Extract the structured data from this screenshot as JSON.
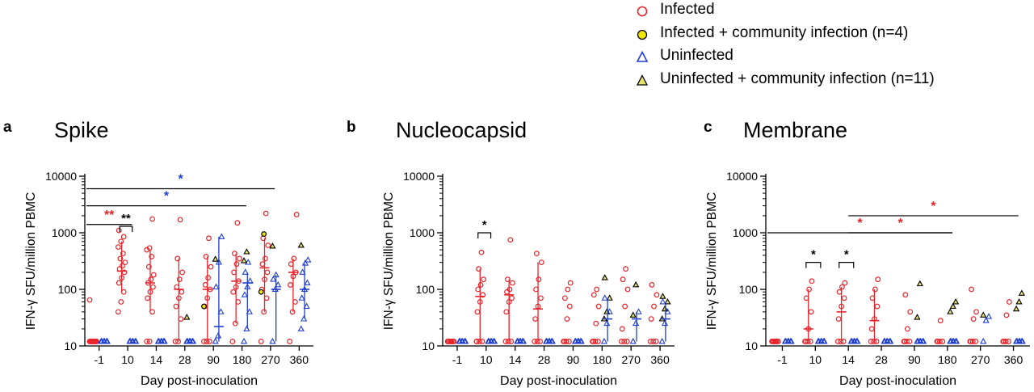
{
  "legend": [
    {
      "label": "Infected",
      "marker": "circle",
      "color": "#e8242b",
      "fill": "none"
    },
    {
      "label": "Infected + community infection (n=4)",
      "marker": "circle",
      "color": "#000000",
      "fill": "#f2e600"
    },
    {
      "label": "Uninfected",
      "marker": "triangle",
      "color": "#1f3fd1",
      "fill": "none"
    },
    {
      "label": "Uninfected + community infection (n=11)",
      "marker": "triangle",
      "color": "#000000",
      "fill": "#e8e36e"
    }
  ],
  "colors": {
    "infected": "#e8242b",
    "uninfected": "#1f3fd1",
    "community_fill": "#f2e600",
    "uninfected_community_fill": "#e8e36e",
    "sig_black": "#000000"
  },
  "chart_data": [
    {
      "panel_letter": "a",
      "title": "Spike",
      "type": "scatter",
      "xlabel": "Day post-inoculation",
      "ylabel": "IFN-γ SFU/million PBMC",
      "y_scale": "log",
      "ylim": [
        10,
        10000
      ],
      "yticks": [
        10,
        100,
        1000,
        10000
      ],
      "categories": [
        "-1",
        "10",
        "14",
        "28",
        "90",
        "180",
        "270",
        "360"
      ],
      "series": [
        {
          "name": "Infected",
          "values": [
            [
              12,
              12,
              12,
              12,
              12,
              12,
              12,
              12,
              12,
              12,
              12,
              65
            ],
            [
              40,
              60,
              90,
              130,
              160,
              200,
              230,
              260,
              300,
              350,
              430,
              560,
              700,
              850,
              1100
            ],
            [
              12,
              12,
              40,
              70,
              90,
              110,
              130,
              150,
              180,
              250,
              380,
              500,
              540,
              1750
            ],
            [
              12,
              12,
              30,
              50,
              70,
              90,
              110,
              150,
              200,
              350,
              1700
            ],
            [
              12,
              12,
              12,
              50,
              70,
              100,
              120,
              160,
              250,
              380,
              800
            ],
            [
              12,
              25,
              60,
              90,
              110,
              140,
              200,
              280,
              350,
              430,
              1500
            ],
            [
              12,
              40,
              70,
              100,
              150,
              200,
              280,
              350,
              600,
              800,
              2200
            ],
            [
              12,
              40,
              60,
              120,
              170,
              200,
              280,
              350,
              2100
            ]
          ]
        },
        {
          "name": "Infected + community infection (n=4)",
          "values": [
            [],
            [],
            [],
            [],
            [
              50
            ],
            [],
            [
              90,
              950
            ],
            []
          ]
        },
        {
          "name": "Uninfected",
          "values": [
            [
              12,
              12,
              12,
              12,
              12,
              12
            ],
            [
              12,
              12,
              12,
              12,
              12,
              12
            ],
            [
              12,
              12,
              12,
              12,
              12,
              12
            ],
            [
              12,
              12,
              12,
              12,
              12,
              12
            ],
            [
              12,
              15,
              40,
              110,
              300,
              850
            ],
            [
              12,
              20,
              40,
              80,
              110,
              140,
              200,
              300
            ],
            [
              12,
              100,
              120,
              150,
              180
            ],
            [
              20,
              30,
              50,
              70,
              100,
              130,
              200,
              290,
              330
            ]
          ]
        },
        {
          "name": "Uninfected + community infection (n=11)",
          "values": [
            [],
            [],
            [],
            [
              32
            ],
            [
              340
            ],
            [
              320,
              460
            ],
            [
              580
            ],
            [
              600
            ]
          ]
        }
      ],
      "center_lines": [
        [
          12,
          210,
          130,
          100,
          100,
          140,
          240,
          200
        ],
        [
          12,
          12,
          12,
          12,
          22,
          130,
          100,
          100
        ]
      ],
      "significance": [
        {
          "from": "-1",
          "to": "10",
          "y": 1400,
          "label": "**",
          "color": "#e8242b",
          "type": "bar"
        },
        {
          "from": "-1",
          "to": "180",
          "y": 3000,
          "label": "*",
          "color": "#1f3fd1",
          "type": "bar"
        },
        {
          "from": "-1",
          "to": "270",
          "y": 6000,
          "label": "*",
          "color": "#1f3fd1",
          "type": "bar"
        },
        {
          "at": "10",
          "y": 1300,
          "label": "**",
          "color": "#000000",
          "type": "bracket"
        }
      ]
    },
    {
      "panel_letter": "b",
      "title": "Nucleocapsid",
      "type": "scatter",
      "xlabel": "Day post-inoculation",
      "ylabel": "IFN-γ SFU/million PBMC",
      "y_scale": "log",
      "ylim": [
        10,
        10000
      ],
      "yticks": [
        10,
        100,
        1000,
        10000
      ],
      "categories": [
        "-1",
        "10",
        "14",
        "28",
        "90",
        "180",
        "270",
        "360"
      ],
      "series": [
        {
          "name": "Infected",
          "values": [
            [
              12,
              12,
              12,
              12,
              12,
              12,
              12,
              12
            ],
            [
              12,
              12,
              12,
              40,
              60,
              80,
              100,
              120,
              150,
              230,
              450,
              12
            ],
            [
              12,
              12,
              12,
              40,
              60,
              70,
              90,
              100,
              130,
              150,
              750
            ],
            [
              12,
              12,
              12,
              30,
              50,
              70,
              100,
              150,
              300,
              430
            ],
            [
              12,
              12,
              12,
              12,
              30,
              50,
              70,
              100,
              130
            ],
            [
              12,
              12,
              12,
              12,
              25,
              50,
              80,
              100
            ],
            [
              12,
              12,
              12,
              20,
              50,
              100,
              150,
              230
            ],
            [
              12,
              12,
              12,
              30,
              50,
              80,
              120
            ]
          ]
        },
        {
          "name": "Infected + community infection (n=4)",
          "values": [
            [],
            [],
            [],
            [],
            [],
            [],
            [],
            []
          ]
        },
        {
          "name": "Uninfected",
          "values": [
            [
              12,
              12,
              12,
              12,
              12,
              12
            ],
            [
              12,
              12,
              12,
              12,
              12,
              12
            ],
            [
              12,
              12,
              12,
              12,
              12,
              12
            ],
            [
              12,
              12,
              12,
              12,
              12,
              12
            ],
            [
              12,
              12,
              12,
              12,
              12,
              12
            ],
            [
              12,
              25,
              40,
              70
            ],
            [
              12,
              25,
              40
            ],
            [
              12,
              25,
              40,
              60
            ]
          ]
        },
        {
          "name": "Uninfected + community infection (n=11)",
          "values": [
            [],
            [],
            [],
            [],
            [],
            [
              30,
              40,
              70,
              160
            ],
            [
              35,
              120
            ],
            [
              30,
              45,
              60,
              75
            ]
          ]
        }
      ],
      "center_lines": [
        [
          12,
          75,
          80,
          45,
          12,
          12,
          12,
          12
        ],
        [
          12,
          12,
          12,
          12,
          12,
          30,
          30,
          30
        ]
      ],
      "significance": [
        {
          "at": "10",
          "y": 1000,
          "label": "*",
          "color": "#000000",
          "type": "bracket"
        }
      ]
    },
    {
      "panel_letter": "c",
      "title": "Membrane",
      "type": "scatter",
      "xlabel": "Day post-inoculation",
      "ylabel": "IFN-γ SFU/million PBMC",
      "y_scale": "log",
      "ylim": [
        10,
        10000
      ],
      "yticks": [
        10,
        100,
        1000,
        10000
      ],
      "categories": [
        "-1",
        "10",
        "14",
        "28",
        "90",
        "180",
        "270",
        "360"
      ],
      "series": [
        {
          "name": "Infected",
          "values": [
            [
              12,
              12,
              12,
              12,
              12,
              12,
              12,
              12
            ],
            [
              12,
              12,
              12,
              12,
              20,
              40,
              70,
              100,
              140
            ],
            [
              12,
              12,
              12,
              30,
              50,
              70,
              90,
              110,
              130
            ],
            [
              12,
              12,
              12,
              20,
              30,
              50,
              70,
              100,
              150
            ],
            [
              12,
              12,
              12,
              12,
              20,
              40,
              80
            ],
            [
              12,
              12,
              12,
              12,
              28
            ],
            [
              12,
              12,
              12,
              12,
              30,
              40,
              100
            ],
            [
              12,
              12,
              12,
              12,
              35,
              60
            ]
          ]
        },
        {
          "name": "Infected + community infection (n=4)",
          "values": [
            [],
            [],
            [],
            [],
            [],
            [],
            [],
            []
          ]
        },
        {
          "name": "Uninfected",
          "values": [
            [
              12,
              12,
              12,
              12,
              12,
              12
            ],
            [
              12,
              12,
              12,
              12,
              12,
              12
            ],
            [
              12,
              12,
              12,
              12,
              12,
              12
            ],
            [
              12,
              12,
              12,
              12,
              12,
              12
            ],
            [
              12,
              12,
              12,
              12,
              12,
              12
            ],
            [
              12,
              12,
              12,
              12,
              12,
              12
            ],
            [
              12,
              28,
              33
            ],
            [
              12,
              12,
              12,
              12,
              12,
              12
            ]
          ]
        },
        {
          "name": "Uninfected + community infection (n=11)",
          "values": [
            [],
            [],
            [],
            [],
            [
              32,
              125
            ],
            [
              40,
              50,
              60
            ],
            [
              35
            ],
            [
              45,
              60,
              85
            ]
          ]
        }
      ],
      "center_lines": [
        [
          12,
          20,
          40,
          28,
          12,
          12,
          12,
          12
        ],
        [
          12,
          12,
          12,
          12,
          12,
          12,
          12,
          12
        ]
      ],
      "significance": [
        {
          "from": "-1",
          "to": "180",
          "y": 1000,
          "label": "*",
          "color": "#e8242b",
          "type": "bar"
        },
        {
          "from": "14",
          "to": "180",
          "y": 1000,
          "label": "*",
          "color": "#e8242b",
          "type": "bar_alt"
        },
        {
          "from": "14",
          "to": "360",
          "y": 2000,
          "label": "*",
          "color": "#e8242b",
          "type": "bar"
        },
        {
          "at": "10",
          "y": 300,
          "label": "*",
          "color": "#000000",
          "type": "bracket"
        },
        {
          "at": "14",
          "y": 300,
          "label": "*",
          "color": "#000000",
          "type": "bracket"
        }
      ]
    }
  ]
}
